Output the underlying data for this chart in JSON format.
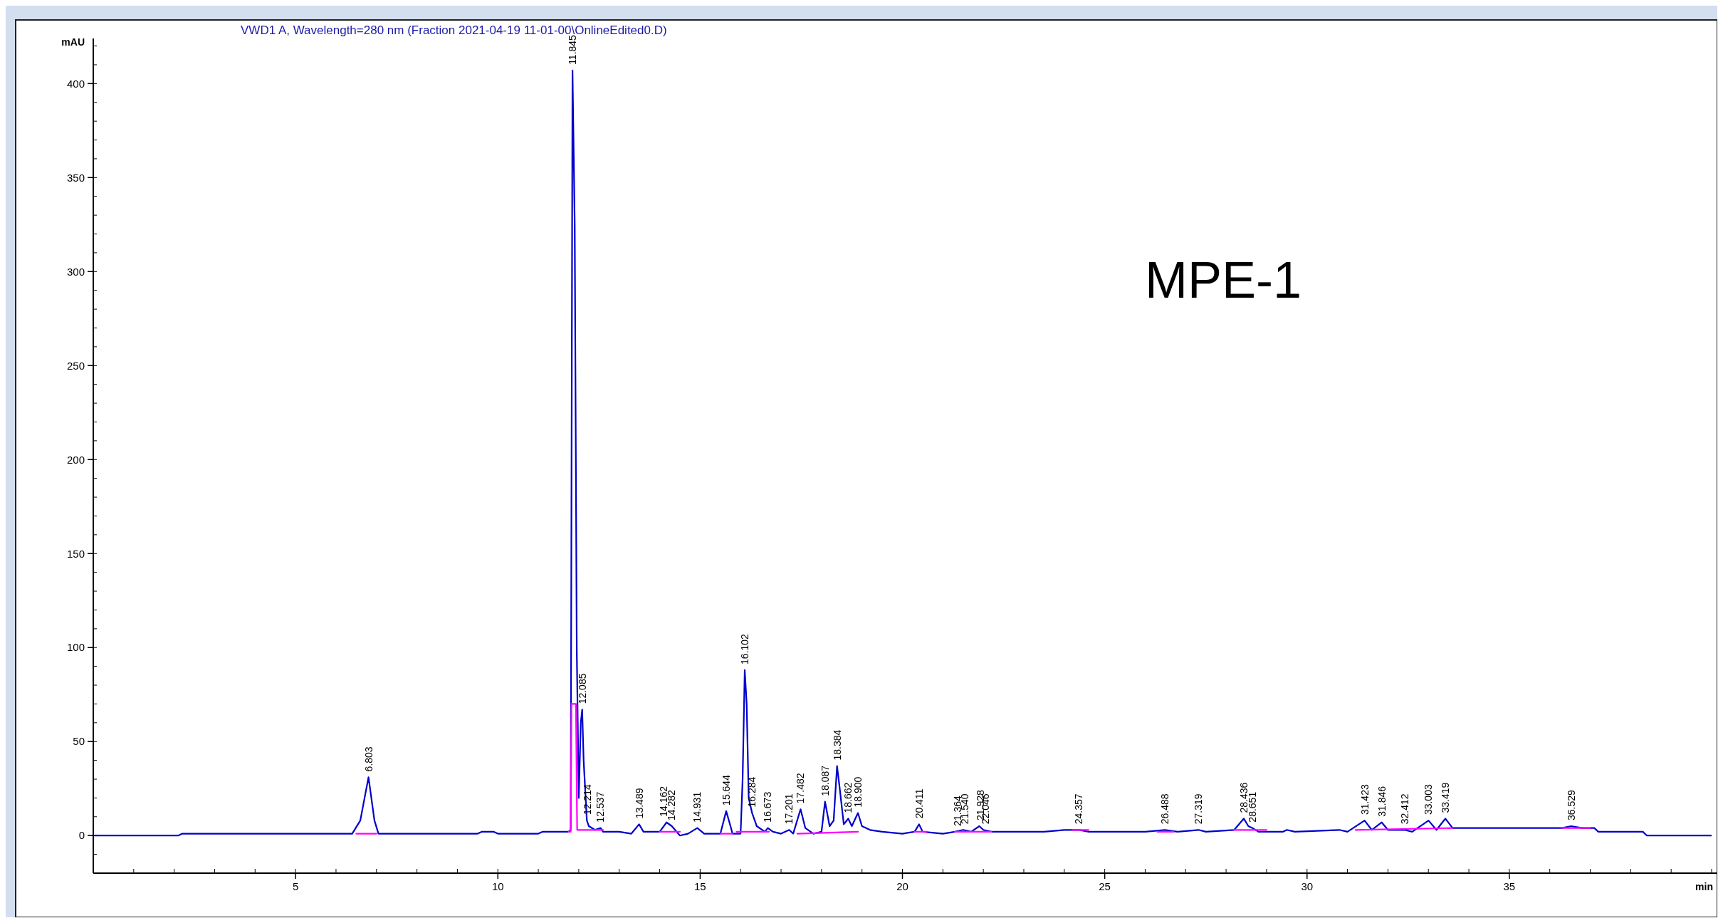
{
  "chart_data": {
    "type": "line",
    "title": "VWD1 A, Wavelength=280 nm (Fraction 2021-04-19 11-01-00\\OnlineEdited0.D)",
    "xlabel": "min",
    "ylabel": "mAU",
    "xlim": [
      0,
      40
    ],
    "xticks": [
      5,
      10,
      15,
      20,
      25,
      30,
      35
    ],
    "ylim": [
      -20,
      424
    ],
    "yticks": [
      0,
      50,
      100,
      150,
      200,
      250,
      300,
      350,
      400
    ],
    "grid": false,
    "marker": "none",
    "line_style": "solid",
    "series": [
      {
        "color": "#0000cc",
        "x": [
          0,
          2.1,
          2.2,
          6.4,
          6.6,
          6.803,
          6.95,
          7.05,
          9.5,
          9.6,
          9.9,
          10.0,
          11.0,
          11.1,
          11.75,
          11.8,
          11.845,
          11.9,
          11.95,
          12.0,
          12.05,
          12.085,
          12.12,
          12.2,
          12.25,
          12.4,
          12.54,
          12.6,
          13.0,
          13.3,
          13.49,
          13.6,
          14.0,
          14.17,
          14.3,
          14.5,
          14.7,
          14.93,
          15.1,
          15.5,
          15.644,
          15.75,
          15.8,
          16.0,
          16.05,
          16.102,
          16.15,
          16.2,
          16.284,
          16.4,
          16.6,
          16.673,
          16.8,
          17.0,
          17.201,
          17.3,
          17.482,
          17.6,
          17.8,
          18.0,
          18.087,
          18.2,
          18.3,
          18.384,
          18.45,
          18.55,
          18.66,
          18.75,
          18.9,
          19.0,
          19.2,
          19.5,
          20.0,
          20.3,
          20.411,
          20.5,
          21.0,
          21.3,
          21.5,
          21.7,
          21.9,
          22.0,
          22.2,
          22.5,
          23.5,
          24.0,
          24.357,
          24.6,
          26.0,
          26.488,
          26.8,
          27.319,
          27.5,
          28.2,
          28.436,
          28.55,
          28.651,
          28.8,
          29.4,
          29.5,
          29.7,
          30.8,
          31.0,
          31.423,
          31.6,
          31.846,
          32.0,
          32.412,
          32.6,
          33.003,
          33.2,
          33.419,
          33.6,
          34.0,
          35.0,
          36.3,
          36.529,
          36.8,
          37.1,
          37.2,
          38.3,
          38.4,
          40
        ],
        "values": [
          0,
          0,
          1,
          1,
          8,
          31,
          8,
          1,
          1,
          2,
          2,
          1,
          1,
          2,
          2,
          3,
          407,
          325,
          100,
          20,
          60,
          67,
          40,
          8,
          5,
          3,
          4,
          2,
          2,
          1,
          6,
          2,
          2,
          7,
          5,
          0,
          1,
          4,
          1,
          1,
          13,
          5,
          1,
          1,
          30,
          88,
          70,
          20,
          12,
          5,
          2,
          4,
          2,
          1,
          3,
          1,
          14,
          4,
          1,
          2,
          18,
          5,
          8,
          37,
          25,
          6,
          9,
          5,
          12,
          5,
          3,
          2,
          1,
          2,
          6,
          2,
          1,
          2,
          3,
          2,
          5,
          3,
          2,
          2,
          2,
          3,
          3,
          2,
          2,
          3,
          2,
          3,
          2,
          3,
          9,
          5,
          4,
          2,
          2,
          3,
          2,
          3,
          2,
          8,
          3,
          7,
          3,
          3,
          2,
          8,
          3,
          9,
          4,
          4,
          4,
          4,
          5,
          4,
          4,
          2,
          2,
          0,
          0
        ]
      },
      {
        "color": "#ff00ff",
        "x": [
          6.5,
          7.0,
          7.01,
          11.75,
          11.8,
          11.82,
          11.93,
          11.96,
          12.6,
          12.61,
          14.0,
          14.5,
          14.51,
          15.5,
          15.8,
          15.81,
          15.9,
          16.7,
          16.71,
          17.4,
          18.9,
          18.91,
          20.3,
          20.6,
          20.61,
          21.3,
          22.2,
          22.21,
          24.2,
          24.6,
          24.61,
          26.3,
          26.7,
          26.71,
          28.2,
          29.0,
          29.01,
          31.2,
          33.6,
          33.61,
          36.3,
          37.0
        ],
        "values": [
          1,
          1,
          null,
          2,
          2,
          70,
          70,
          3,
          3,
          null,
          2,
          2,
          null,
          1,
          1,
          null,
          2,
          2,
          null,
          1,
          2,
          null,
          2,
          2,
          null,
          2,
          2,
          null,
          3,
          3,
          null,
          2,
          2,
          null,
          3,
          3,
          null,
          3,
          4,
          null,
          4,
          4
        ]
      }
    ],
    "annotations": [
      "MPE-1",
      {
        "text": "6.803",
        "x": 6.803,
        "y": 31
      },
      {
        "text": "11.845",
        "x": 11.845,
        "y": 407
      },
      {
        "text": "12.085",
        "x": 12.085,
        "y": 67
      },
      {
        "text": "12.214",
        "x": 12.214,
        "y": 8
      },
      {
        "text": "12.537",
        "x": 12.537,
        "y": 4
      },
      {
        "text": "13.489",
        "x": 13.489,
        "y": 6
      },
      {
        "text": "14.162",
        "x": 14.1,
        "y": 7
      },
      {
        "text": "14.282",
        "x": 14.282,
        "y": 5
      },
      {
        "text": "14.931",
        "x": 14.931,
        "y": 4
      },
      {
        "text": "15.644",
        "x": 15.644,
        "y": 13
      },
      {
        "text": "16.102",
        "x": 16.102,
        "y": 88
      },
      {
        "text": "16.284",
        "x": 16.284,
        "y": 12
      },
      {
        "text": "16.673",
        "x": 16.673,
        "y": 4
      },
      {
        "text": "17.201",
        "x": 17.201,
        "y": 3
      },
      {
        "text": "17.482",
        "x": 17.482,
        "y": 14
      },
      {
        "text": "18.087",
        "x": 18.087,
        "y": 18
      },
      {
        "text": "18.384",
        "x": 18.384,
        "y": 37
      },
      {
        "text": "18.662",
        "x": 18.662,
        "y": 9
      },
      {
        "text": "18.900",
        "x": 18.9,
        "y": 12
      },
      {
        "text": "20.411",
        "x": 20.411,
        "y": 6
      },
      {
        "text": "21.364",
        "x": 21.364,
        "y": 2
      },
      {
        "text": "21.540",
        "x": 21.54,
        "y": 3
      },
      {
        "text": "21.928",
        "x": 21.928,
        "y": 5
      },
      {
        "text": "22.046",
        "x": 22.046,
        "y": 3
      },
      {
        "text": "24.357",
        "x": 24.357,
        "y": 3
      },
      {
        "text": "26.488",
        "x": 26.488,
        "y": 3
      },
      {
        "text": "27.319",
        "x": 27.319,
        "y": 3
      },
      {
        "text": "28.436",
        "x": 28.436,
        "y": 9
      },
      {
        "text": "28.651",
        "x": 28.651,
        "y": 4
      },
      {
        "text": "31.423",
        "x": 31.423,
        "y": 8
      },
      {
        "text": "31.846",
        "x": 31.846,
        "y": 7
      },
      {
        "text": "32.412",
        "x": 32.412,
        "y": 3
      },
      {
        "text": "33.003",
        "x": 33.003,
        "y": 8
      },
      {
        "text": "33.419",
        "x": 33.419,
        "y": 9
      },
      {
        "text": "36.529",
        "x": 36.529,
        "y": 5
      }
    ]
  }
}
